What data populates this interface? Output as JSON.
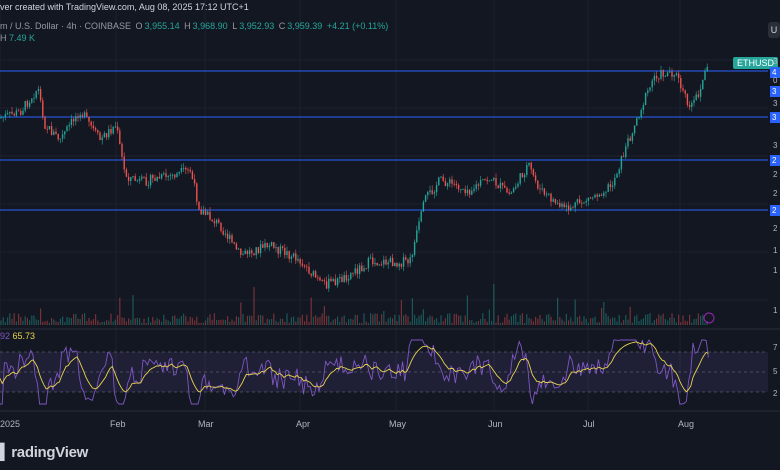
{
  "header": {
    "topline": "ver created with TradingView.com, Aug 08, 2025 17:12 UTC+1",
    "symbol": "m / U.S. Dollar · 4h · COINBASE",
    "open_label": "O",
    "open": "3,955.14",
    "high_label": "H",
    "high": "3,968.90",
    "low_label": "L",
    "low": "3,952.93",
    "close_label": "C",
    "close": "3,959.39",
    "change": "+4.21 (+0.11%)",
    "vol_label": "H",
    "vol": "7.49 K",
    "u_button": "U"
  },
  "price_tag": "ETHUSD",
  "rsi": {
    "left": "92",
    "value": "65.73"
  },
  "x_axis": [
    "2025",
    "Feb",
    "Mar",
    "Apr",
    "May",
    "Jun",
    "Jul",
    "Aug"
  ],
  "y_axis_right": [
    "3",
    "4",
    "0",
    "3",
    "3",
    "3",
    "3",
    "2",
    "2",
    "2",
    "2",
    "2",
    "1",
    "1",
    "1"
  ],
  "rsi_axis": [
    "7",
    "5",
    "2"
  ],
  "footer": {
    "logo_text": "radingView"
  },
  "colors": {
    "background": "#131722",
    "up": "#26a69a",
    "down": "#ef5350",
    "line": "#2962ff",
    "rsi": "#7e57c2",
    "rsi_ma": "#e8d44d"
  },
  "icons": {
    "lightning": "lightning-icon",
    "logo": "tradingview-logo-icon"
  }
}
